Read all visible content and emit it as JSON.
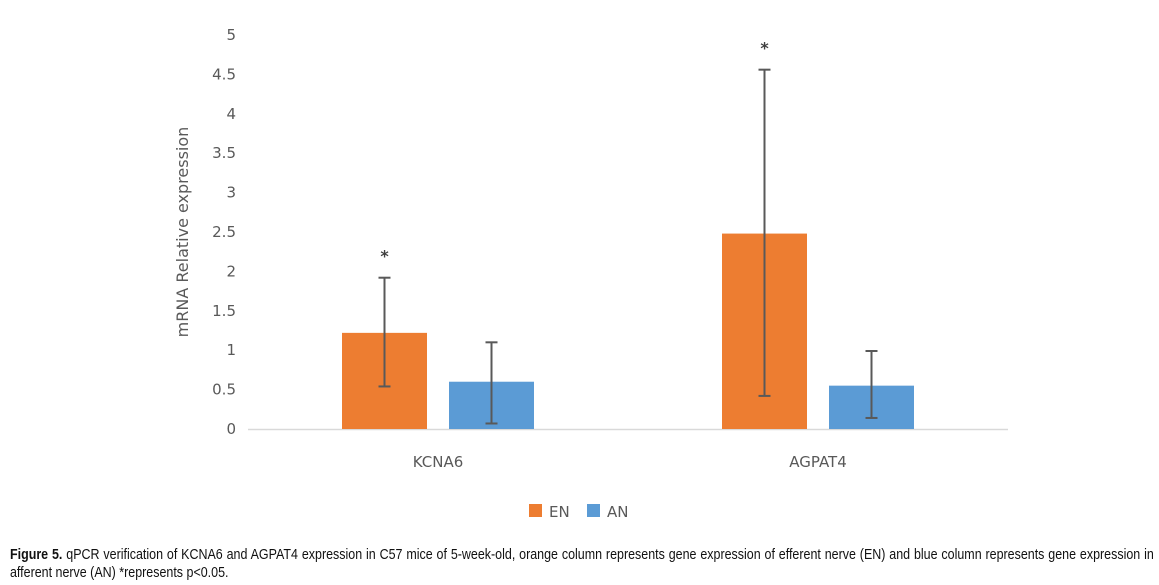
{
  "chart_data": {
    "type": "bar",
    "title": "",
    "xlabel": "",
    "ylabel": "mRNA Relative expression",
    "ylim": [
      0,
      5
    ],
    "yticks": [
      "0",
      "0.5",
      "1",
      "1.5",
      "2",
      "2.5",
      "3",
      "3.5",
      "4",
      "4.5",
      "5"
    ],
    "grid": false,
    "legend_position": "bottom-center",
    "categories": [
      "KCNA6",
      "AGPAT4"
    ],
    "series": [
      {
        "name": "EN",
        "color": "#ED7D31",
        "values": [
          1.22,
          2.48
        ],
        "error_upper": [
          1.92,
          4.56
        ],
        "error_lower": [
          0.54,
          0.42
        ],
        "significance": [
          "*",
          "*"
        ]
      },
      {
        "name": "AN",
        "color": "#5B9BD5",
        "values": [
          0.6,
          0.55
        ],
        "error_upper": [
          1.1,
          0.99
        ],
        "error_lower": [
          0.07,
          0.14
        ],
        "significance": [
          "",
          ""
        ]
      }
    ]
  },
  "caption": {
    "label": "Figure 5.",
    "text": "qPCR verification of KCNA6 and AGPAT4 expression in C57 mice of 5-week-old, orange column represents gene expression of efferent nerve (EN) and blue column represents gene expression in afferent nerve (AN) *represents p<0.05."
  }
}
